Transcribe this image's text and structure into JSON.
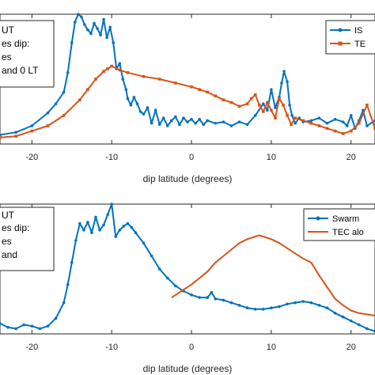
{
  "chart_data": [
    {
      "type": "line",
      "xlabel": "dip latitude (degrees)",
      "xlim": [
        -24,
        23
      ],
      "ylim": [
        0,
        1
      ],
      "xticks": [
        -20,
        -10,
        0,
        10,
        20
      ],
      "annotation_lines": [
        "UT",
        "es dip:",
        "es",
        "and 0 LT"
      ],
      "legend_entries": [
        "IS",
        "TE"
      ],
      "series": [
        {
          "color": "#0072BD",
          "marker": "dot",
          "x": [
            -24,
            -22,
            -20,
            -18,
            -17,
            -16,
            -15.5,
            -15,
            -14.6,
            -14.2,
            -13.8,
            -13.4,
            -13,
            -12.6,
            -12.2,
            -11.8,
            -11.4,
            -11,
            -10.6,
            -10.2,
            -9.8,
            -9.4,
            -9,
            -8.6,
            -8.2,
            -8,
            -7.6,
            -7.2,
            -6.8,
            -6.4,
            -6,
            -5.5,
            -5,
            -4.5,
            -4,
            -3.5,
            -3,
            -2.5,
            -2,
            -1.5,
            -1,
            -0.5,
            0,
            0.5,
            1,
            1.5,
            2,
            3,
            4,
            5,
            6,
            7,
            8,
            9,
            9.5,
            10,
            10.5,
            11,
            11.3,
            11.6,
            12,
            12.3,
            12.6,
            13,
            13.5,
            14,
            15,
            16,
            17,
            18,
            19,
            19.5,
            20,
            20.5,
            21,
            21.5,
            22,
            23
          ],
          "y": [
            0.07,
            0.09,
            0.14,
            0.24,
            0.31,
            0.4,
            0.55,
            0.78,
            0.94,
            1.0,
            0.98,
            0.92,
            0.88,
            0.85,
            0.93,
            0.89,
            0.84,
            0.96,
            0.82,
            0.9,
            0.78,
            0.58,
            0.62,
            0.5,
            0.42,
            0.35,
            0.3,
            0.36,
            0.31,
            0.25,
            0.23,
            0.28,
            0.16,
            0.26,
            0.15,
            0.2,
            0.14,
            0.18,
            0.21,
            0.15,
            0.2,
            0.17,
            0.19,
            0.16,
            0.19,
            0.15,
            0.18,
            0.16,
            0.17,
            0.14,
            0.17,
            0.15,
            0.22,
            0.31,
            0.26,
            0.42,
            0.28,
            0.36,
            0.47,
            0.56,
            0.48,
            0.3,
            0.22,
            0.16,
            0.2,
            0.17,
            0.18,
            0.2,
            0.16,
            0.19,
            0.17,
            0.14,
            0.22,
            0.12,
            0.18,
            0.26,
            0.14,
            0.18
          ]
        },
        {
          "color": "#D95319",
          "marker": "square",
          "x": [
            -24,
            -22,
            -20,
            -18,
            -16,
            -14,
            -13,
            -12,
            -11,
            -10.5,
            -10,
            -9,
            -8,
            -6,
            -4,
            -2,
            0,
            1,
            2,
            3,
            4,
            5,
            6,
            7,
            7.5,
            8,
            8.5,
            9,
            9.5,
            10,
            10.5,
            11,
            11.5,
            12,
            12.5,
            13,
            14,
            15,
            16,
            17,
            18,
            19,
            20,
            21,
            22,
            23
          ],
          "y": [
            0.05,
            0.06,
            0.1,
            0.14,
            0.22,
            0.34,
            0.42,
            0.5,
            0.56,
            0.58,
            0.6,
            0.57,
            0.55,
            0.52,
            0.5,
            0.47,
            0.44,
            0.42,
            0.4,
            0.37,
            0.34,
            0.32,
            0.29,
            0.31,
            0.35,
            0.38,
            0.3,
            0.25,
            0.32,
            0.26,
            0.2,
            0.35,
            0.3,
            0.22,
            0.15,
            0.2,
            0.18,
            0.16,
            0.14,
            0.12,
            0.1,
            0.08,
            0.1,
            0.16,
            0.3,
            0.12
          ]
        }
      ]
    },
    {
      "type": "line",
      "xlabel": "dip latitude (degrees)",
      "xlim": [
        -24,
        23
      ],
      "ylim": [
        0,
        1
      ],
      "xticks": [
        -20,
        -10,
        0,
        10,
        20
      ],
      "annotation_lines": [
        "UT",
        "es dip:",
        "es",
        "and"
      ],
      "legend_entries": [
        "Swarm",
        "TEC alo"
      ],
      "series": [
        {
          "color": "#0072BD",
          "marker": "dot",
          "x": [
            -24,
            -23,
            -22,
            -21,
            -20,
            -19,
            -18,
            -17,
            -16,
            -15.5,
            -15,
            -14.5,
            -14,
            -13.5,
            -13,
            -12.5,
            -12,
            -11.5,
            -11,
            -10.5,
            -10,
            -9.5,
            -9,
            -8.5,
            -8,
            -7.5,
            -7,
            -6,
            -5,
            -4,
            -3,
            -2,
            -1,
            0,
            1,
            2,
            2.5,
            3,
            4,
            5,
            6,
            7,
            8,
            9,
            10,
            11,
            12,
            13,
            14,
            15,
            16,
            17,
            18,
            19,
            20,
            21,
            22,
            23
          ],
          "y": [
            0.08,
            0.05,
            0.04,
            0.07,
            0.06,
            0.04,
            0.06,
            0.12,
            0.24,
            0.38,
            0.55,
            0.72,
            0.85,
            0.8,
            0.86,
            0.78,
            0.9,
            0.8,
            0.84,
            0.92,
            1.0,
            0.75,
            0.8,
            0.83,
            0.85,
            0.82,
            0.78,
            0.7,
            0.6,
            0.5,
            0.43,
            0.37,
            0.33,
            0.3,
            0.28,
            0.28,
            0.32,
            0.27,
            0.26,
            0.24,
            0.22,
            0.2,
            0.19,
            0.19,
            0.2,
            0.21,
            0.23,
            0.24,
            0.25,
            0.24,
            0.22,
            0.2,
            0.16,
            0.13,
            0.1,
            0.07,
            0.04,
            0.02
          ]
        },
        {
          "color": "#D95319",
          "marker": "none",
          "x": [
            -2.5,
            -2,
            -1,
            0,
            1,
            2,
            3,
            4,
            5,
            6,
            7,
            8,
            8.5,
            9,
            10,
            11,
            12,
            13,
            14,
            15,
            16,
            17,
            18,
            19,
            20,
            21,
            22,
            23
          ],
          "y": [
            0.28,
            0.3,
            0.34,
            0.38,
            0.43,
            0.48,
            0.55,
            0.6,
            0.65,
            0.7,
            0.73,
            0.75,
            0.76,
            0.75,
            0.73,
            0.7,
            0.66,
            0.62,
            0.58,
            0.55,
            0.45,
            0.36,
            0.27,
            0.22,
            0.18,
            0.16,
            0.15,
            0.14
          ]
        }
      ]
    }
  ]
}
